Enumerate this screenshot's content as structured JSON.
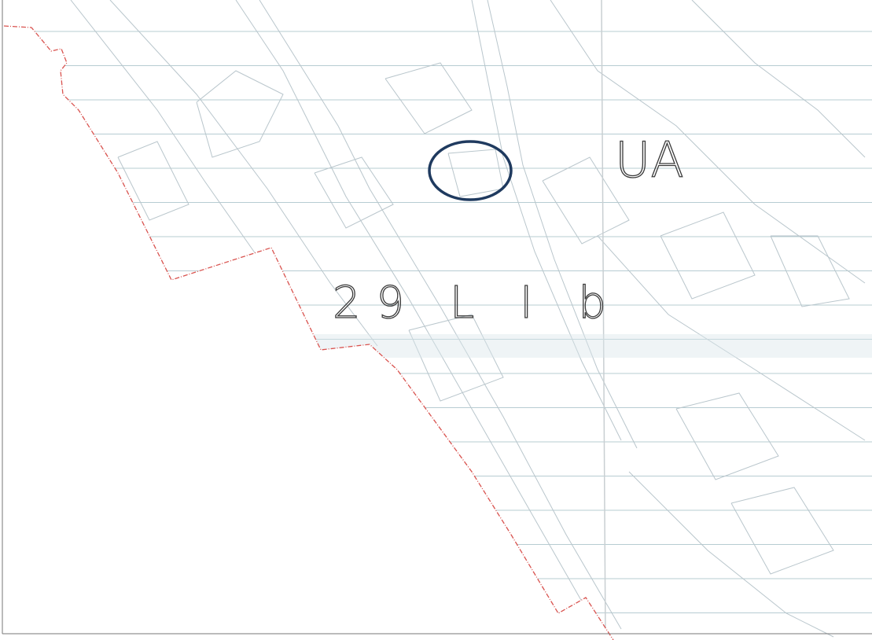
{
  "labels": {
    "zone": "UA",
    "sector": "29 L I b"
  }
}
